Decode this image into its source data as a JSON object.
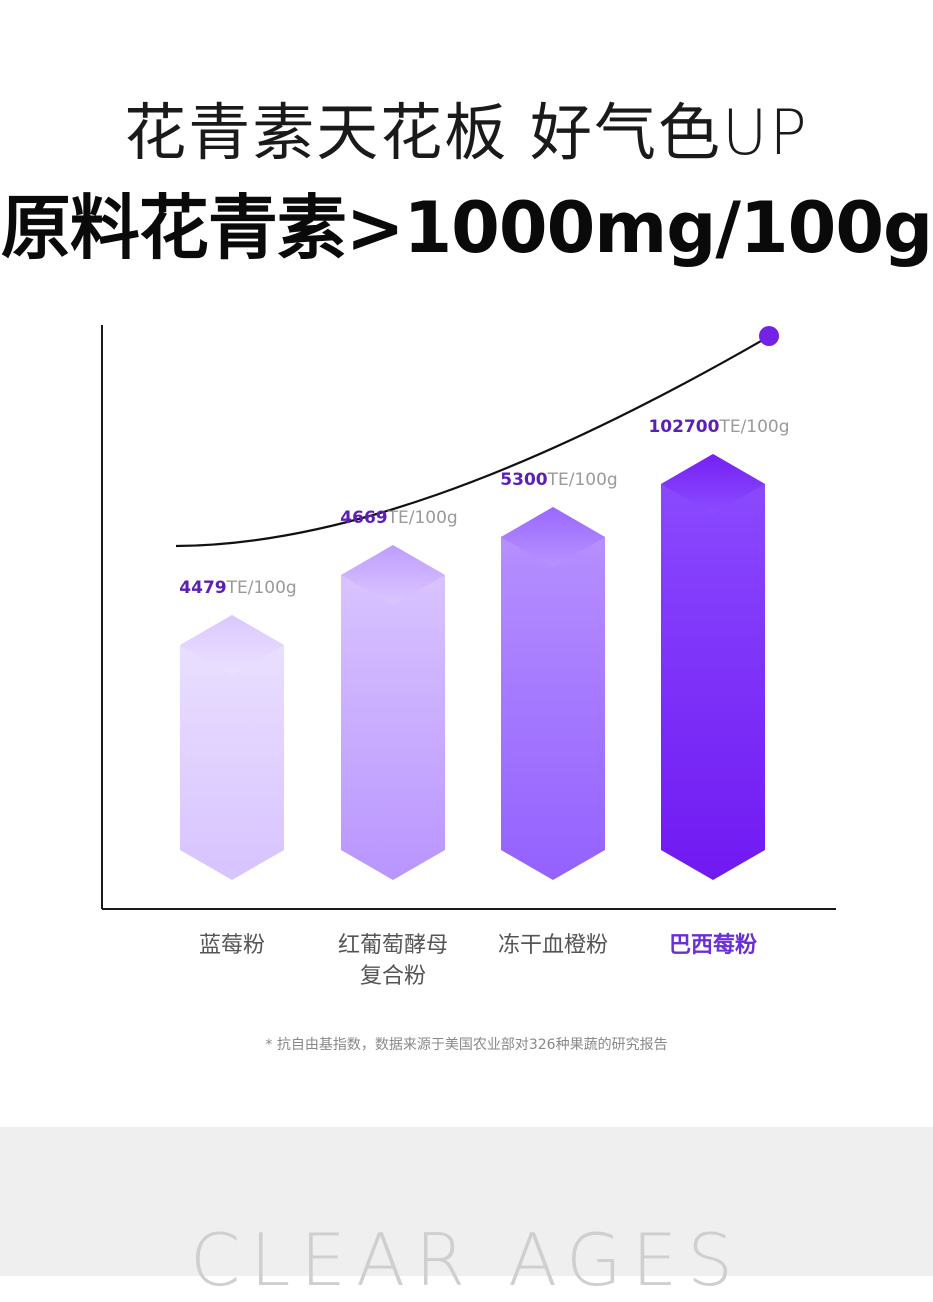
{
  "headline": {
    "line1": "花青素天花板 好气色UP",
    "line2": "原料花青素>1000mg/100g"
  },
  "chart_data": {
    "type": "bar",
    "title": "",
    "xlabel": "",
    "ylabel": "",
    "unit": "TE/100g",
    "categories": [
      "蓝莓粉",
      "红葡萄酵母复合粉",
      "冻干血橙粉",
      "巴西莓粉"
    ],
    "category_lines": [
      [
        "蓝莓粉"
      ],
      [
        "红葡萄酵母",
        "复合粉"
      ],
      [
        "冻干血橙粉"
      ],
      [
        "巴西莓粉"
      ]
    ],
    "values": [
      4479,
      4669,
      5300,
      102700
    ],
    "value_labels": [
      "4479",
      "4669",
      "5300",
      "102700"
    ],
    "highlight_index": 3,
    "trend_line": true,
    "grid": false,
    "colors": {
      "value_text": "#5b1fb8",
      "unit_text": "#9a9a9a",
      "category_text": "#555555",
      "category_highlight": "#6b2fd6",
      "axis": "#1a1a1a",
      "trend_dot": "#7322e6",
      "bar_light": [
        "#ece2ff",
        "#dcc8ff",
        "#b993ff",
        "#8c4dff"
      ],
      "bar_dark": [
        "#d7c3ff",
        "#b995ff",
        "#9361ff",
        "#7019f2"
      ]
    }
  },
  "footnote": "* 抗自由基指数，数据来源于美国农业部对326种果蔬的研究报告",
  "watermark": "CLEAR AGES"
}
